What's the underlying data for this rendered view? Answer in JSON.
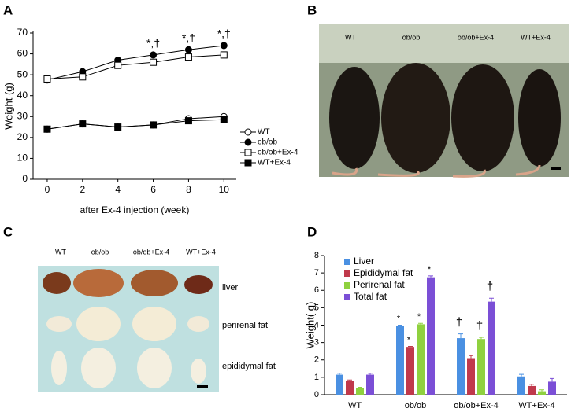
{
  "chart_data": [
    {
      "type": "line",
      "panel": "A",
      "ylabel": "Weight (g)",
      "xlabel": "after Ex-4 injection (week)",
      "x": [
        0,
        2,
        4,
        6,
        8,
        10
      ],
      "xlim": [
        -0.8,
        10.7
      ],
      "xticks": [
        0,
        2,
        4,
        6,
        8,
        10
      ],
      "ylim": [
        0,
        70
      ],
      "yticks": [
        0,
        10,
        20,
        30,
        40,
        50,
        60,
        70
      ],
      "legend": "right",
      "series": [
        {
          "name": "WT",
          "color": "#000000",
          "marker": "circle",
          "filled": false,
          "values": [
            24,
            26.5,
            25,
            26,
            29,
            30
          ]
        },
        {
          "name": "ob/ob",
          "color": "#000000",
          "marker": "circle",
          "filled": true,
          "values": [
            47.5,
            51.5,
            57,
            59.5,
            62,
            64
          ]
        },
        {
          "name": "ob/ob+Ex-4",
          "color": "#000000",
          "marker": "square",
          "filled": false,
          "values": [
            48,
            49,
            54.5,
            56,
            58.5,
            59.5
          ]
        },
        {
          "name": "WT+Ex-4",
          "color": "#000000",
          "marker": "square",
          "filled": true,
          "values": [
            24,
            26.5,
            25,
            26,
            28,
            28.5
          ]
        }
      ],
      "annotations": [
        {
          "x": 6,
          "text": "*,†"
        },
        {
          "x": 8,
          "text": "*,†"
        },
        {
          "x": 10,
          "text": "*,†"
        }
      ]
    },
    {
      "type": "bar",
      "panel": "D",
      "ylabel": "Weight( g)",
      "categories": [
        "WT",
        "ob/ob",
        "ob/ob+Ex-4",
        "WT+Ex-4"
      ],
      "ylim": [
        0,
        8
      ],
      "yticks": [
        0,
        1,
        2,
        3,
        4,
        5,
        6,
        7,
        8
      ],
      "legend": "upper left",
      "series": [
        {
          "name": "Liver",
          "color": "#4a90e2",
          "values": [
            1.15,
            3.95,
            3.25,
            1.05
          ],
          "errors": [
            0.08,
            0.05,
            0.25,
            0.12
          ],
          "markers": [
            null,
            "*",
            "†",
            null
          ]
        },
        {
          "name": "Epididymal fat",
          "color": "#c0394b",
          "values": [
            0.8,
            2.75,
            2.1,
            0.5
          ],
          "errors": [
            0.05,
            0.03,
            0.15,
            0.1
          ],
          "markers": [
            null,
            "*",
            null,
            null
          ]
        },
        {
          "name": "Perirenal fat",
          "color": "#8fd13f",
          "values": [
            0.4,
            4.05,
            3.2,
            0.2
          ],
          "errors": [
            0.03,
            0.05,
            0.1,
            0.08
          ],
          "markers": [
            null,
            "*",
            "†",
            null
          ]
        },
        {
          "name": "Total fat",
          "color": "#7b4fd6",
          "values": [
            1.15,
            6.75,
            5.35,
            0.75
          ],
          "errors": [
            0.08,
            0.08,
            0.2,
            0.18
          ],
          "markers": [
            null,
            "*",
            "†",
            null
          ]
        }
      ]
    }
  ],
  "photo_b": {
    "panel": "B",
    "labels": [
      "WT",
      "ob/ob",
      "ob/ob+Ex-4",
      "WT+Ex-4"
    ]
  },
  "photo_c": {
    "panel": "C",
    "labels": [
      "WT",
      "ob/ob",
      "ob/ob+Ex-4",
      "WT+Ex-4"
    ],
    "rows": [
      "liver",
      "perirenal fat",
      "epididymal fat"
    ]
  }
}
